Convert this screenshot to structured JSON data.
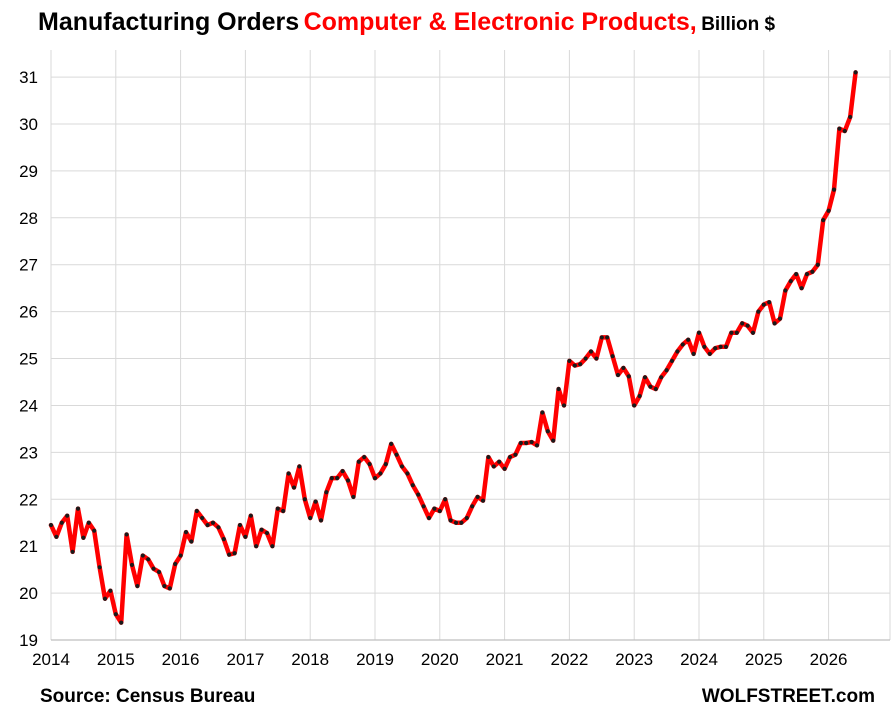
{
  "title": {
    "main": "Manufacturing Orders",
    "highlight": "Computer & Electronic Products,",
    "unit": "Billion $"
  },
  "footer": {
    "source": "Source: Census Bureau",
    "site": "WOLFSTREET.com"
  },
  "colors": {
    "line": "#ff0000",
    "marker": "#1a1a1a",
    "grid": "#d9d9d9",
    "axis": "#bfbfbf",
    "title_highlight": "#ff0000"
  },
  "chart_data": {
    "type": "line",
    "title": "Manufacturing Orders Computer & Electronic Products, Billion $",
    "xlabel": "",
    "ylabel": "",
    "xlim": [
      2014,
      2026.5
    ],
    "ylim": [
      19,
      31.3
    ],
    "grid": true,
    "legend": "none",
    "x_ticks": [
      "2014",
      "2015",
      "2016",
      "2017",
      "2018",
      "2019",
      "2020",
      "2021",
      "2022",
      "2023",
      "2024",
      "2025",
      "2026"
    ],
    "y_ticks": [
      "19",
      "20",
      "21",
      "22",
      "23",
      "24",
      "25",
      "26",
      "27",
      "28",
      "29",
      "30",
      "31"
    ],
    "series": [
      {
        "start": "2014-01",
        "frequency": "monthly",
        "values": [
          21.45,
          21.2,
          21.5,
          21.65,
          20.88,
          21.8,
          21.18,
          21.5,
          21.33,
          20.55,
          19.88,
          20.05,
          19.55,
          19.37,
          21.25,
          20.6,
          20.15,
          20.8,
          20.72,
          20.52,
          20.45,
          20.15,
          20.1,
          20.62,
          20.8,
          21.3,
          21.1,
          21.75,
          21.6,
          21.45,
          21.5,
          21.4,
          21.15,
          20.82,
          20.85,
          21.45,
          21.2,
          21.65,
          21.0,
          21.35,
          21.28,
          21.0,
          21.8,
          21.75,
          22.55,
          22.25,
          22.7,
          22.0,
          21.6,
          21.95,
          21.55,
          22.15,
          22.45,
          22.45,
          22.6,
          22.4,
          22.05,
          22.8,
          22.9,
          22.75,
          22.45,
          22.55,
          22.75,
          23.18,
          22.95,
          22.7,
          22.55,
          22.3,
          22.1,
          21.85,
          21.6,
          21.8,
          21.75,
          22.0,
          21.55,
          21.5,
          21.5,
          21.6,
          21.85,
          22.05,
          21.97,
          22.9,
          22.7,
          22.8,
          22.65,
          22.9,
          22.95,
          23.2,
          23.2,
          23.22,
          23.15,
          23.85,
          23.45,
          23.25,
          24.35,
          24.0,
          24.95,
          24.85,
          24.88,
          25.0,
          25.15,
          25.0,
          25.45,
          25.45,
          25.05,
          24.65,
          24.8,
          24.62,
          24.0,
          24.2,
          24.6,
          24.4,
          24.35,
          24.6,
          24.75,
          24.95,
          25.15,
          25.3,
          25.4,
          25.1,
          25.55,
          25.25,
          25.1,
          25.22,
          25.25,
          25.25,
          25.55,
          25.55,
          25.75,
          25.7,
          25.55,
          26.0,
          26.15,
          26.2,
          25.75,
          25.85,
          26.45,
          26.65,
          26.8,
          26.5,
          26.8,
          26.85,
          27.0,
          27.95,
          28.15,
          28.6,
          29.9,
          29.85,
          30.15,
          31.1
        ]
      }
    ]
  }
}
